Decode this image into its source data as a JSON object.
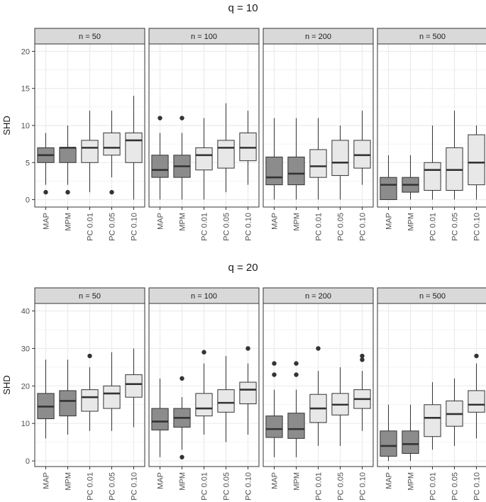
{
  "colors": {
    "map_mpm_fill": "#8c8c8c",
    "pc_fill": "#e8e8e8",
    "strip_bg": "#d9d9d9",
    "grid": "#ebebeb",
    "border": "#333333",
    "box_line": "#333333"
  },
  "chart_data": [
    {
      "type": "boxplot",
      "title": "q = 10",
      "ylabel": "SHD",
      "xlabel": "",
      "ylim": [
        -1,
        21
      ],
      "yticks": [
        0,
        5,
        10,
        15,
        20
      ],
      "categories": [
        "MAP",
        "MPM",
        "PC 0.01",
        "PC 0.05",
        "PC 0.10"
      ],
      "panels": [
        {
          "label": "n = 50",
          "boxes": [
            {
              "category": "MAP",
              "whisker_low": 2,
              "q1": 5,
              "median": 6,
              "q3": 7,
              "whisker_high": 9,
              "outliers": [
                1
              ]
            },
            {
              "category": "MPM",
              "whisker_low": 2,
              "q1": 5,
              "median": 7,
              "q3": 7,
              "whisker_high": 10,
              "outliers": [
                1
              ]
            },
            {
              "category": "PC 0.01",
              "whisker_low": 1,
              "q1": 5,
              "median": 7,
              "q3": 8,
              "whisker_high": 12,
              "outliers": []
            },
            {
              "category": "PC 0.05",
              "whisker_low": 3,
              "q1": 6,
              "median": 7,
              "q3": 9,
              "whisker_high": 12,
              "outliers": [
                1
              ]
            },
            {
              "category": "PC 0.10",
              "whisker_low": 0,
              "q1": 5,
              "median": 8,
              "q3": 9,
              "whisker_high": 14,
              "outliers": []
            }
          ]
        },
        {
          "label": "n = 100",
          "boxes": [
            {
              "category": "MAP",
              "whisker_low": 0,
              "q1": 3,
              "median": 4,
              "q3": 6,
              "whisker_high": 9,
              "outliers": [
                11
              ]
            },
            {
              "category": "MPM",
              "whisker_low": 0,
              "q1": 3,
              "median": 4.5,
              "q3": 6,
              "whisker_high": 9,
              "outliers": [
                11
              ]
            },
            {
              "category": "PC 0.01",
              "whisker_low": 0,
              "q1": 4,
              "median": 6,
              "q3": 7,
              "whisker_high": 11,
              "outliers": []
            },
            {
              "category": "PC 0.05",
              "whisker_low": 1,
              "q1": 4.25,
              "median": 7,
              "q3": 8,
              "whisker_high": 13,
              "outliers": []
            },
            {
              "category": "PC 0.10",
              "whisker_low": 2,
              "q1": 5.25,
              "median": 7,
              "q3": 9,
              "whisker_high": 12,
              "outliers": []
            }
          ]
        },
        {
          "label": "n = 200",
          "boxes": [
            {
              "category": "MAP",
              "whisker_low": 0,
              "q1": 2,
              "median": 3,
              "q3": 5.75,
              "whisker_high": 11,
              "outliers": []
            },
            {
              "category": "MPM",
              "whisker_low": 0,
              "q1": 2,
              "median": 3.5,
              "q3": 5.75,
              "whisker_high": 11,
              "outliers": []
            },
            {
              "category": "PC 0.01",
              "whisker_low": 0,
              "q1": 3,
              "median": 4.5,
              "q3": 6.75,
              "whisker_high": 11,
              "outliers": []
            },
            {
              "category": "PC 0.05",
              "whisker_low": 0,
              "q1": 3.25,
              "median": 5,
              "q3": 8,
              "whisker_high": 10,
              "outliers": []
            },
            {
              "category": "PC 0.10",
              "whisker_low": 2,
              "q1": 4.25,
              "median": 6,
              "q3": 8,
              "whisker_high": 12,
              "outliers": []
            }
          ]
        },
        {
          "label": "n = 500",
          "boxes": [
            {
              "category": "MAP",
              "whisker_low": 0,
              "q1": 0,
              "median": 2,
              "q3": 3,
              "whisker_high": 6,
              "outliers": []
            },
            {
              "category": "MPM",
              "whisker_low": 0,
              "q1": 1,
              "median": 2,
              "q3": 3,
              "whisker_high": 6,
              "outliers": []
            },
            {
              "category": "PC 0.01",
              "whisker_low": 0,
              "q1": 1.25,
              "median": 4,
              "q3": 5,
              "whisker_high": 10,
              "outliers": []
            },
            {
              "category": "PC 0.05",
              "whisker_low": 0,
              "q1": 1.25,
              "median": 4,
              "q3": 7,
              "whisker_high": 12,
              "outliers": []
            },
            {
              "category": "PC 0.10",
              "whisker_low": 0,
              "q1": 2,
              "median": 5,
              "q3": 8.75,
              "whisker_high": 10,
              "outliers": []
            }
          ]
        }
      ]
    },
    {
      "type": "boxplot",
      "title": "q = 20",
      "ylabel": "SHD",
      "xlabel": "",
      "ylim": [
        -1.5,
        42
      ],
      "yticks": [
        0,
        10,
        20,
        30,
        40
      ],
      "categories": [
        "MAP",
        "MPM",
        "PC 0.01",
        "PC 0.05",
        "PC 0.10"
      ],
      "panels": [
        {
          "label": "n = 50",
          "boxes": [
            {
              "category": "MAP",
              "whisker_low": 6,
              "q1": 11.25,
              "median": 14.5,
              "q3": 18,
              "whisker_high": 27,
              "outliers": []
            },
            {
              "category": "MPM",
              "whisker_low": 7,
              "q1": 12,
              "median": 16,
              "q3": 18.75,
              "whisker_high": 27,
              "outliers": []
            },
            {
              "category": "PC 0.01",
              "whisker_low": 8,
              "q1": 13.25,
              "median": 17,
              "q3": 19,
              "whisker_high": 25,
              "outliers": [
                28
              ]
            },
            {
              "category": "PC 0.05",
              "whisker_low": 8,
              "q1": 14,
              "median": 18,
              "q3": 20,
              "whisker_high": 29,
              "outliers": []
            },
            {
              "category": "PC 0.10",
              "whisker_low": 9,
              "q1": 17,
              "median": 20.5,
              "q3": 23,
              "whisker_high": 30,
              "outliers": []
            }
          ]
        },
        {
          "label": "n = 100",
          "boxes": [
            {
              "category": "MAP",
              "whisker_low": 1,
              "q1": 8.25,
              "median": 10.5,
              "q3": 14,
              "whisker_high": 22,
              "outliers": []
            },
            {
              "category": "MPM",
              "whisker_low": 3,
              "q1": 9,
              "median": 11.5,
              "q3": 14,
              "whisker_high": 17,
              "outliers": [
                22,
                1
              ]
            },
            {
              "category": "PC 0.01",
              "whisker_low": 7,
              "q1": 12,
              "median": 14,
              "q3": 18,
              "whisker_high": 26,
              "outliers": [
                29
              ]
            },
            {
              "category": "PC 0.05",
              "whisker_low": 5,
              "q1": 13,
              "median": 15.5,
              "q3": 19,
              "whisker_high": 28,
              "outliers": []
            },
            {
              "category": "PC 0.10",
              "whisker_low": 7,
              "q1": 15.25,
              "median": 19,
              "q3": 21,
              "whisker_high": 26,
              "outliers": [
                30
              ]
            }
          ]
        },
        {
          "label": "n = 200",
          "boxes": [
            {
              "category": "MAP",
              "whisker_low": 1,
              "q1": 6.25,
              "median": 8.5,
              "q3": 12,
              "whisker_high": 19,
              "outliers": [
                26,
                23
              ]
            },
            {
              "category": "MPM",
              "whisker_low": 1,
              "q1": 6,
              "median": 8.5,
              "q3": 12.75,
              "whisker_high": 19,
              "outliers": [
                26,
                23
              ]
            },
            {
              "category": "PC 0.01",
              "whisker_low": 4,
              "q1": 10.25,
              "median": 14,
              "q3": 17.75,
              "whisker_high": 24,
              "outliers": [
                30
              ]
            },
            {
              "category": "PC 0.05",
              "whisker_low": 4,
              "q1": 12.25,
              "median": 15,
              "q3": 18,
              "whisker_high": 25,
              "outliers": []
            },
            {
              "category": "PC 0.10",
              "whisker_low": 8,
              "q1": 14,
              "median": 16.5,
              "q3": 19,
              "whisker_high": 24,
              "outliers": [
                28,
                27
              ]
            }
          ]
        },
        {
          "label": "n = 500",
          "boxes": [
            {
              "category": "MAP",
              "whisker_low": 0,
              "q1": 1.25,
              "median": 4,
              "q3": 8,
              "whisker_high": 15,
              "outliers": []
            },
            {
              "category": "MPM",
              "whisker_low": 0,
              "q1": 2,
              "median": 4.5,
              "q3": 8,
              "whisker_high": 15,
              "outliers": []
            },
            {
              "category": "PC 0.01",
              "whisker_low": 3,
              "q1": 6.5,
              "median": 11.5,
              "q3": 15,
              "whisker_high": 21,
              "outliers": []
            },
            {
              "category": "PC 0.05",
              "whisker_low": 4,
              "q1": 9.25,
              "median": 12.5,
              "q3": 16,
              "whisker_high": 22,
              "outliers": []
            },
            {
              "category": "PC 0.10",
              "whisker_low": 6,
              "q1": 13,
              "median": 15,
              "q3": 18.75,
              "whisker_high": 26,
              "outliers": [
                28
              ]
            }
          ]
        }
      ]
    }
  ]
}
